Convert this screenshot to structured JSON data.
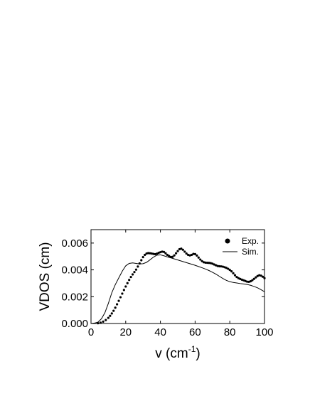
{
  "chart_data": {
    "type": "scatter",
    "xlabel": "v (cm",
    "xlabel_superscript": "-1",
    "xlabel_close": ")",
    "ylabel": "VDOS (cm)",
    "xlim": [
      0,
      100
    ],
    "ylim": [
      0,
      0.007
    ],
    "x_ticks": [
      0,
      20,
      40,
      60,
      80,
      100
    ],
    "x_tick_labels": [
      "0",
      "20",
      "40",
      "60",
      "80",
      "100"
    ],
    "y_ticks": [
      0,
      0.002,
      0.004,
      0.006
    ],
    "y_tick_labels": [
      "0.000",
      "0.002",
      "0.004",
      "0.006"
    ],
    "grid": false,
    "legend_position": "top-right",
    "series": [
      {
        "name": "Exp.",
        "style": "dots",
        "x": [
          4,
          5.5,
          7,
          8.5,
          10,
          11,
          12,
          13,
          14,
          15,
          16,
          17,
          18,
          19,
          20,
          21,
          22,
          23,
          24,
          25,
          26,
          27,
          28,
          29,
          30,
          31,
          32,
          33,
          34,
          35,
          36,
          37,
          38,
          39,
          40,
          41,
          42,
          43,
          44,
          45,
          46,
          47,
          48,
          49,
          50,
          51,
          52,
          53,
          54,
          55,
          56,
          57,
          58,
          59,
          60,
          61,
          62,
          63,
          64,
          65,
          66,
          67,
          68,
          69,
          70,
          71,
          72,
          73,
          74,
          75,
          76,
          77,
          78,
          79,
          80,
          81,
          82,
          83,
          84,
          85,
          86,
          87,
          88,
          89,
          90,
          91,
          92,
          93,
          94,
          95,
          96,
          97,
          98,
          99,
          100
        ],
        "y": [
          2e-05,
          6e-05,
          0.00014,
          0.00026,
          0.00042,
          0.00057,
          0.00075,
          0.00095,
          0.00118,
          0.00143,
          0.00169,
          0.00196,
          0.00223,
          0.0025,
          0.00276,
          0.00301,
          0.00325,
          0.00347,
          0.00366,
          0.00384,
          0.00402,
          0.00425,
          0.00448,
          0.00472,
          0.00495,
          0.00512,
          0.00522,
          0.00525,
          0.00524,
          0.00522,
          0.00519,
          0.00517,
          0.00521,
          0.00527,
          0.00532,
          0.00536,
          0.00534,
          0.00524,
          0.00512,
          0.00503,
          0.00496,
          0.00497,
          0.00508,
          0.00524,
          0.0054,
          0.00554,
          0.00558,
          0.0055,
          0.00536,
          0.00522,
          0.00512,
          0.00508,
          0.00512,
          0.00519,
          0.00518,
          0.00507,
          0.00492,
          0.00477,
          0.00465,
          0.00457,
          0.00454,
          0.00453,
          0.00452,
          0.0045,
          0.00446,
          0.0044,
          0.00434,
          0.00429,
          0.00427,
          0.00426,
          0.00424,
          0.0042,
          0.00415,
          0.00408,
          0.004,
          0.00389,
          0.00375,
          0.0036,
          0.00347,
          0.00338,
          0.00332,
          0.00327,
          0.00322,
          0.00317,
          0.00312,
          0.00311,
          0.00315,
          0.00323,
          0.00333,
          0.00344,
          0.00354,
          0.0036,
          0.00357,
          0.00349,
          0.00338
        ]
      },
      {
        "name": "Sim.",
        "style": "line",
        "x": [
          0,
          2,
          4,
          6,
          8,
          10,
          12,
          14,
          16,
          18,
          20,
          22,
          24,
          26,
          28,
          30,
          32,
          34,
          36,
          38,
          40,
          42,
          44,
          46,
          48,
          50,
          52,
          54,
          56,
          58,
          60,
          62,
          64,
          66,
          68,
          70,
          72,
          74,
          76,
          78,
          80,
          82,
          84,
          86,
          88,
          90,
          92,
          94,
          96,
          98,
          100
        ],
        "y": [
          0,
          3e-05,
          0.0001,
          0.00035,
          0.0008,
          0.0015,
          0.0023,
          0.0029,
          0.0034,
          0.0039,
          0.0043,
          0.00448,
          0.00452,
          0.00448,
          0.00444,
          0.00446,
          0.00456,
          0.00475,
          0.00495,
          0.0051,
          0.00512,
          0.00505,
          0.00497,
          0.0049,
          0.00482,
          0.00474,
          0.00466,
          0.00458,
          0.0045,
          0.00442,
          0.00434,
          0.00425,
          0.00416,
          0.00406,
          0.00395,
          0.00382,
          0.00368,
          0.00352,
          0.00336,
          0.00322,
          0.00312,
          0.00306,
          0.00302,
          0.00298,
          0.00295,
          0.00291,
          0.00285,
          0.00276,
          0.00266,
          0.00252,
          0.00237
        ]
      }
    ]
  }
}
